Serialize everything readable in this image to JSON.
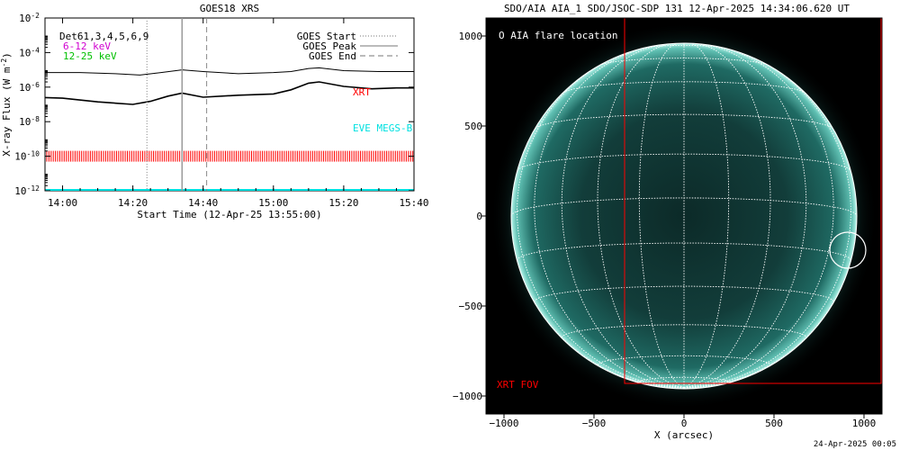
{
  "goes_panel": {
    "title": "GOES18 XRS",
    "ylabel": "X-ray Flux (W m",
    "ylabel_sup": "-2",
    "ylabel_end": ")",
    "xlabel": "Start Time (12-Apr-25 13:55:00)",
    "legend_left": [
      {
        "text": "Det61,3,4,5,6,9",
        "color": "#000000"
      },
      {
        "text": "6-12 keV",
        "color": "#d000d0"
      },
      {
        "text": "12-25 keV",
        "color": "#00c000"
      }
    ],
    "legend_right": [
      {
        "text": "GOES Start",
        "style": "dotted"
      },
      {
        "text": "GOES Peak",
        "style": "solid"
      },
      {
        "text": "GOES End",
        "style": "dashed"
      }
    ],
    "annotations": {
      "xrt": "XRT",
      "eve": "EVE MEGS-B"
    },
    "colors": {
      "xrt": "#ff0000",
      "eve": "#00e0e0"
    }
  },
  "aia_panel": {
    "title": "SDO/AIA AIA_1 SDO/JSOC-SDP 131 12-Apr-2025 14:34:06.620 UT",
    "legend": "O AIA flare location",
    "fov_label": "XRT FOV",
    "xlabel": "X (arcsec)",
    "colors": {
      "disk": "#1b6e66",
      "fov": "#ff0000",
      "grid": "#ffffff"
    }
  },
  "footer": {
    "timestamp": "24-Apr-2025 00:05"
  },
  "chart_data": [
    {
      "type": "line",
      "title": "GOES18 XRS",
      "xlabel": "Start Time (12-Apr-25 13:55:00)",
      "ylabel": "X-ray Flux (W m-2)",
      "yscale": "log",
      "xlim": [
        "13:55",
        "15:40"
      ],
      "ylim": [
        1e-12,
        0.01
      ],
      "x_ticks": [
        "14:00",
        "14:20",
        "14:40",
        "15:00",
        "15:20",
        "15:40"
      ],
      "y_ticks": [
        "10^-12",
        "10^-10",
        "10^-8",
        "10^-6",
        "10^-4",
        "10^-2"
      ],
      "series": [
        {
          "name": "",
          "x": [
            "13:55",
            "14:05",
            "14:15",
            "14:22",
            "14:28",
            "14:34",
            "14:40",
            "14:50",
            "15:00",
            "15:05",
            "15:10",
            "15:13",
            "15:20",
            "15:30",
            "15:40"
          ],
          "values": [
            7e-06,
            7e-06,
            6e-06,
            5e-06,
            7e-06,
            1e-05,
            8e-06,
            6e-06,
            7e-06,
            8e-06,
            1.2e-05,
            1.3e-05,
            9e-06,
            8e-06,
            8e-06
          ]
        },
        {
          "name": "",
          "x": [
            "13:55",
            "14:00",
            "14:10",
            "14:20",
            "14:25",
            "14:30",
            "14:34",
            "14:40",
            "14:50",
            "15:00",
            "15:05",
            "15:10",
            "15:13",
            "15:20",
            "15:28",
            "15:35",
            "15:40"
          ],
          "values": [
            2.5e-07,
            2.3e-07,
            1.4e-07,
            1e-07,
            1.5e-07,
            3e-07,
            4.5e-07,
            2.6e-07,
            3.4e-07,
            4e-07,
            7e-07,
            1.7e-06,
            2e-06,
            1.1e-06,
            8e-07,
            9e-07,
            9e-07
          ]
        }
      ],
      "vlines": {
        "goes_start": "14:24",
        "goes_peak": "14:34",
        "goes_end": "14:41"
      },
      "xrt_bar_level": 1e-10,
      "eve_level": 1e-12
    },
    {
      "type": "scatter",
      "title": "SDO/AIA AIA_1 SDO/JSOC-SDP 131 12-Apr-2025 14:34:06.620 UT",
      "xlabel": "X (arcsec)",
      "xlim": [
        -1100,
        1100
      ],
      "ylim": [
        -1100,
        1100
      ],
      "x_ticks": [
        "-1000",
        "-500",
        "0",
        "500",
        "1000"
      ],
      "y_ticks": [
        "1000",
        "500",
        "0",
        "-500",
        "-1000"
      ],
      "solar_radius_arcsec": 960,
      "flare_location": {
        "x": 910,
        "y": -190,
        "radius": 100
      },
      "xrt_fov": {
        "x0": -330,
        "x1": 1100,
        "y0": -930,
        "y1": 1100
      }
    }
  ]
}
